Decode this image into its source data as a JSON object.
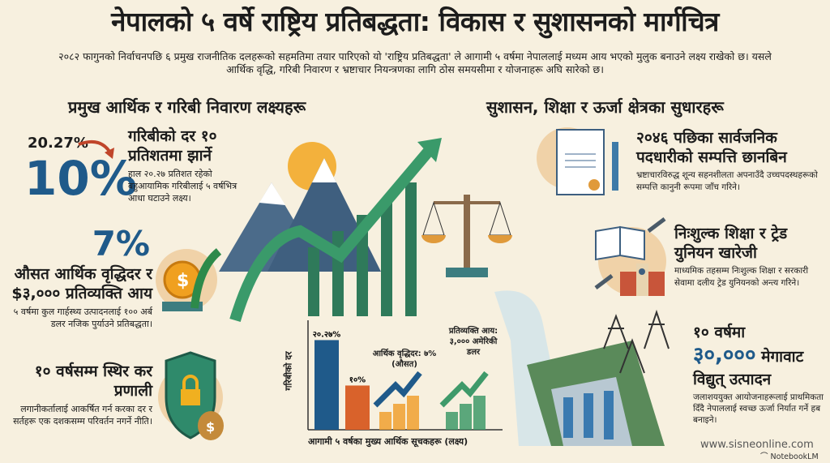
{
  "title": "नेपालको ५ वर्षे राष्ट्रिय प्रतिबद्धता: विकास र सुशासनको मार्गचित्र",
  "subtitle": "२०८२ फागुनको निर्वाचनपछि ६ प्रमुख राजनीतिक दलहरूको सहमतिमा तयार पारिएको यो 'राष्ट्रिय प्रतिबद्धता' ले आगामी ५ वर्षमा नेपाललाई मध्यम आय भएको मुलुक बनाउने लक्ष्य राखेको छ। यसले आर्थिक वृद्धि, गरिबी निवारण र भ्रष्टाचार नियन्त्रणका लागि ठोस समयसीमा र योजनाहरू अघि सारेको छ।",
  "left": {
    "heading": "प्रमुख आर्थिक र गरिबी निवारण लक्ष्यहरू",
    "poverty": {
      "from": "20.27%",
      "to": "10%",
      "title": "गरिबीको दर १० प्रतिशतमा झार्ने",
      "body": "हाल २०.२७ प्रतिशत रहेको बहुआयामिक गरिबीलाई ५ वर्षभित्र आधा घटाउने लक्ष्य।"
    },
    "growth": {
      "value": "7%",
      "title": "औसत आर्थिक वृद्धिदर र $३,००० प्रतिव्यक्ति आय",
      "body": "५ वर्षमा कुल गार्हस्थ्य उत्पादनलाई १०० अर्ब डलर नजिक पुर्याउने प्रतिबद्धता।"
    },
    "tax": {
      "title": "१० वर्षसम्म स्थिर कर प्रणाली",
      "body": "लगानीकर्तालाई आकर्षित गर्न करका दर र सर्तहरू एक दशकसम्म परिवर्तन नगर्ने नीति।"
    }
  },
  "chart_data": {
    "type": "bar",
    "ylabel": "गरिबीको दर",
    "xlabel": "आगामी ५ वर्षका मुख्य आर्थिक सूचकहरू (लक्ष्य)",
    "categories": [
      "२०.२७%",
      "१०%"
    ],
    "values": [
      20.27,
      10
    ],
    "bar_colors": [
      "#1f5a8a",
      "#d9622b"
    ],
    "annotations": [
      "आर्थिक वृद्धिदर: ७% (औसत)",
      "प्रतिव्यक्ति आय: ३,००० अमेरिकी डलर"
    ],
    "ylim": [
      0,
      22
    ]
  },
  "right": {
    "heading": "सुशासन, शिक्षा र ऊर्जा क्षेत्रका सुधारहरू",
    "assets": {
      "title": "२०४६ पछिका सार्वजनिक पदधारीको सम्पत्ति छानबिन",
      "body": "भ्रष्टाचारविरुद्ध शून्य सहनशीलता अपनाउँदै उच्चपदस्थहरूको सम्पत्ति कानुनी रूपमा जाँच गरिने।"
    },
    "education": {
      "title": "निःशुल्क शिक्षा र ट्रेड युनियन खारेजी",
      "body": "माध्यमिक तहसम्म निःशुल्क शिक्षा र सरकारी सेवामा दलीय ट्रेड युनियनको अन्त्य गरिने।"
    },
    "energy": {
      "line1": "१० वर्षमा",
      "value": "३०,०००",
      "unit": "मेगावाट",
      "line3": "विद्युत् उत्पादन",
      "body": "जलाशययुक्त आयोजनाहरूलाई प्राथमिकता दिँदै नेपाललाई स्वच्छ ऊर्जा निर्यात गर्ने हब बनाइने।"
    }
  },
  "footer": {
    "website": "www.sisneonline.com",
    "brand": "NotebookLM"
  },
  "colors": {
    "background": "#f7f0df",
    "blue": "#1f5a8a",
    "orange": "#d9622b",
    "green": "#3f9a6a"
  }
}
